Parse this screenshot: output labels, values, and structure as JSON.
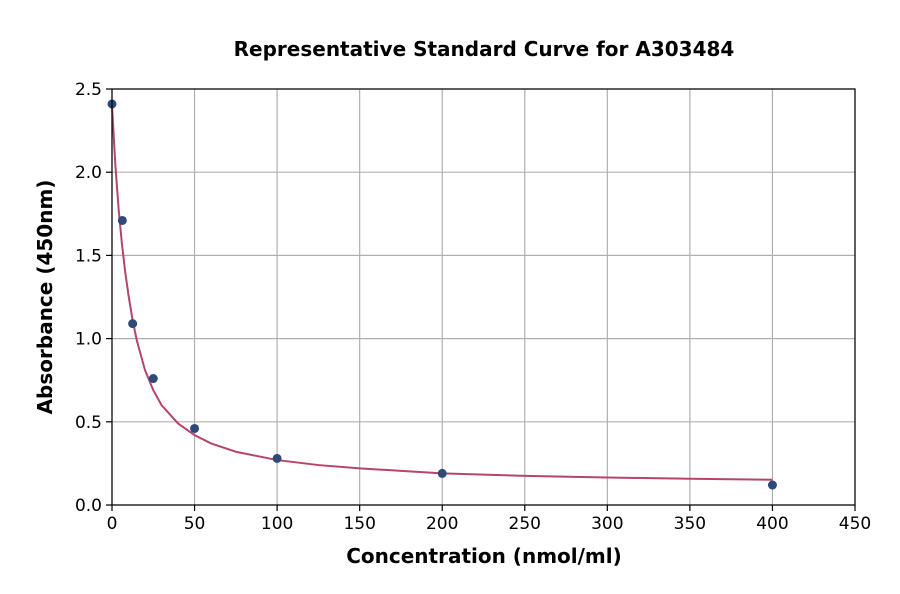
{
  "chart_data": {
    "type": "scatter",
    "title": "Representative Standard Curve for A303484",
    "xlabel": "Concentration (nmol/ml)",
    "ylabel": "Absorbance (450nm)",
    "xlim": [
      0,
      450
    ],
    "ylim": [
      0,
      2.5
    ],
    "xticks": [
      0,
      50,
      100,
      150,
      200,
      250,
      300,
      350,
      400,
      450
    ],
    "yticks": [
      0.0,
      0.5,
      1.0,
      1.5,
      2.0,
      2.5
    ],
    "xtick_labels": [
      "0",
      "50",
      "100",
      "150",
      "200",
      "250",
      "300",
      "350",
      "400",
      "450"
    ],
    "ytick_labels": [
      "0.0",
      "0.5",
      "1.0",
      "1.5",
      "2.0",
      "2.5"
    ],
    "grid": true,
    "series": [
      {
        "x": [
          0,
          6.25,
          12.5,
          25,
          50,
          100,
          200,
          400
        ],
        "y": [
          2.41,
          1.71,
          1.09,
          0.76,
          0.46,
          0.28,
          0.19,
          0.12
        ],
        "marker_color": "#2e4a7a"
      }
    ],
    "fit_curve": {
      "color": "#b5446e",
      "x": [
        0,
        2,
        4,
        6,
        8,
        10,
        12.5,
        15,
        20,
        25,
        30,
        40,
        50,
        60,
        75,
        100,
        125,
        150,
        200,
        250,
        300,
        350,
        400
      ],
      "y": [
        2.4,
        2.05,
        1.78,
        1.57,
        1.4,
        1.26,
        1.11,
        0.99,
        0.81,
        0.69,
        0.6,
        0.49,
        0.42,
        0.37,
        0.32,
        0.27,
        0.24,
        0.22,
        0.19,
        0.175,
        0.165,
        0.158,
        0.152
      ]
    }
  }
}
